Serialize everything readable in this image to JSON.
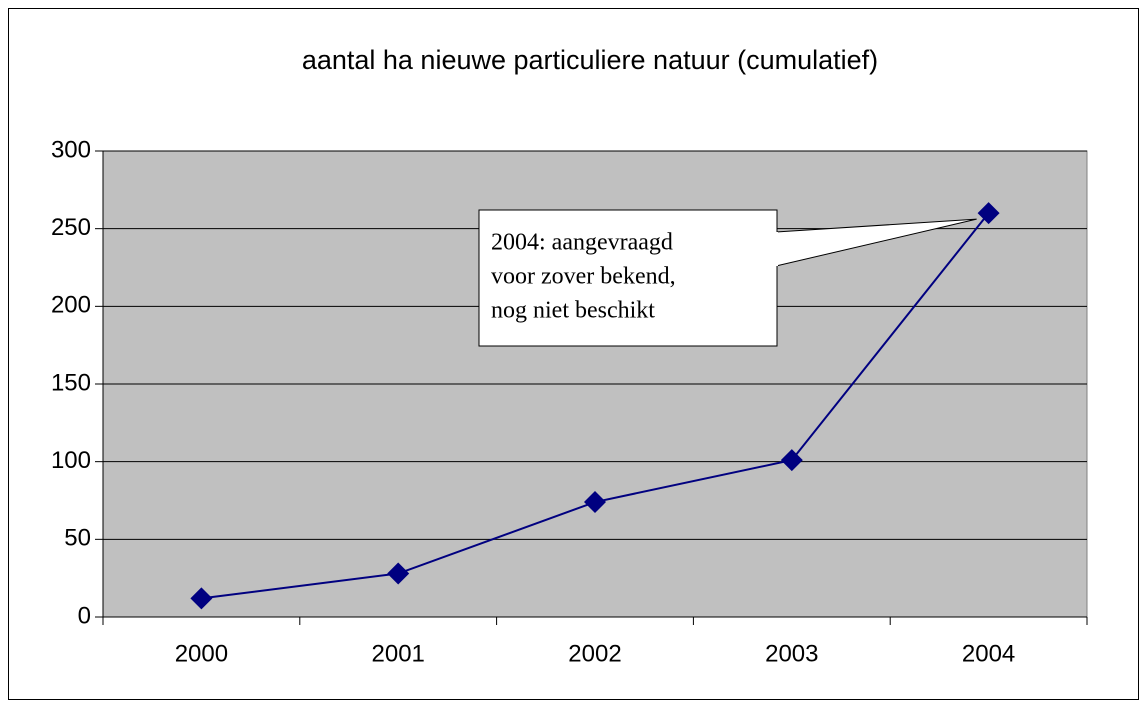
{
  "chart_data": {
    "type": "line",
    "title": "aantal ha nieuwe particuliere natuur (cumulatief)",
    "categories": [
      "2000",
      "2001",
      "2002",
      "2003",
      "2004"
    ],
    "values": [
      12,
      28,
      74,
      101,
      260
    ],
    "color": "#000080",
    "ylim": [
      0,
      300
    ],
    "yticks": [
      0,
      50,
      100,
      150,
      200,
      250,
      300
    ],
    "grid": true,
    "annotation": [
      "2004: aangevraagd",
      "voor zover bekend,",
      "nog niet beschikt"
    ]
  }
}
